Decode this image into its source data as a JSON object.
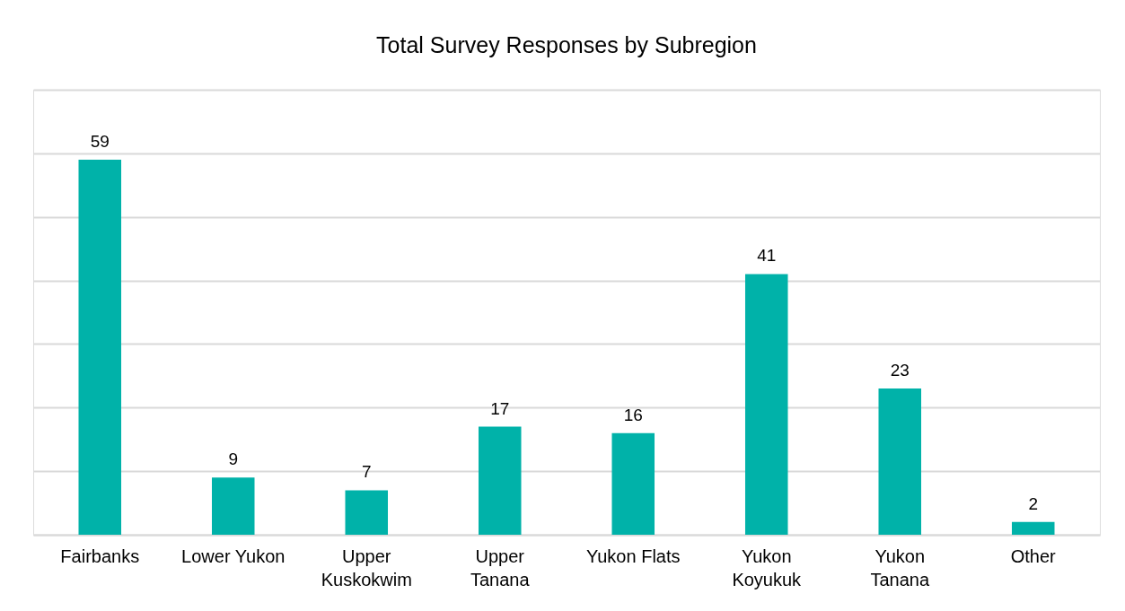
{
  "chart_data": {
    "type": "bar",
    "title": "Total Survey Responses by Subregion",
    "categories": [
      "Fairbanks",
      "Lower Yukon",
      "Upper Kuskokwim",
      "Upper Tanana",
      "Yukon Flats",
      "Yukon Koyukuk",
      "Yukon Tanana",
      "Other"
    ],
    "values": [
      59,
      9,
      7,
      17,
      16,
      41,
      23,
      2
    ],
    "color": "#00b2a9",
    "ylim": [
      0,
      70
    ],
    "yticks": [
      {
        "value": 0,
        "label": null
      },
      {
        "value": 10,
        "label": null
      },
      {
        "value": 20,
        "label": null
      },
      {
        "value": 30,
        "label": null
      },
      {
        "value": 40,
        "label": null
      },
      {
        "value": 50,
        "label": null
      },
      {
        "value": 60,
        "label": null
      },
      {
        "value": 70,
        "label": null
      }
    ],
    "grid": "y",
    "tick_labels": "x",
    "data_labels": true
  }
}
